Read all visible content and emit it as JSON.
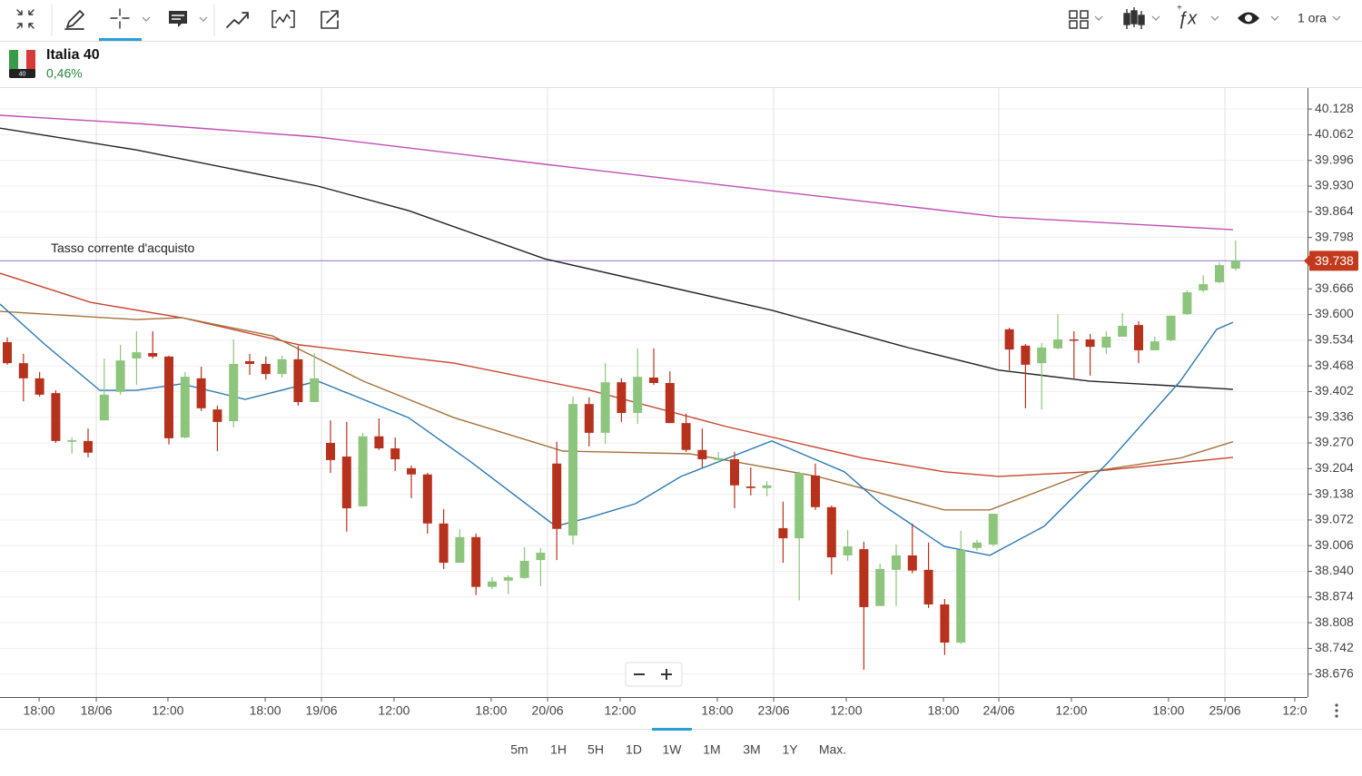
{
  "toolbar": {
    "interval": "1 ora"
  },
  "instrument": {
    "name": "Italia 40",
    "change": "0,46%",
    "badge": "40"
  },
  "ranges": {
    "buttons": [
      "5m",
      "1H",
      "5H",
      "1D",
      "1W",
      "1M",
      "3M",
      "1Y",
      "Max."
    ],
    "selected": 4
  },
  "chart_data": {
    "type": "candlestick",
    "x": [
      0,
      1,
      2,
      3,
      4,
      5,
      6,
      7,
      8,
      9,
      10,
      11,
      12,
      13,
      14,
      15,
      16,
      17,
      18,
      19,
      20,
      21,
      22,
      23,
      24,
      25,
      26,
      27,
      28,
      29,
      30,
      31,
      32,
      33,
      34,
      35,
      36,
      37,
      38,
      39,
      40,
      41,
      42,
      43,
      44,
      45,
      46,
      47,
      48,
      49,
      50,
      51,
      52,
      53,
      54,
      55,
      56,
      57,
      58,
      59,
      60,
      61,
      62,
      63,
      64,
      65,
      66,
      67,
      68,
      69,
      70,
      71,
      72,
      73,
      74,
      75,
      76
    ],
    "open": [
      39.529,
      39.475,
      39.436,
      39.398,
      39.273,
      39.275,
      39.328,
      39.401,
      39.487,
      39.501,
      39.492,
      39.284,
      39.436,
      39.356,
      39.326,
      39.48,
      39.473,
      39.447,
      39.485,
      39.375,
      39.27,
      39.235,
      39.107,
      39.287,
      39.256,
      39.205,
      39.189,
      39.063,
      38.962,
      39.028,
      38.9,
      38.916,
      38.923,
      38.969,
      39.217,
      39.032,
      39.37,
      39.296,
      39.426,
      39.347,
      39.438,
      39.424,
      39.321,
      39.252,
      39.226,
      39.228,
      39.158,
      39.154,
      39.051,
      39.025,
      39.186,
      39.105,
      38.981,
      38.997,
      38.851,
      38.944,
      38.981,
      38.944,
      38.855,
      38.757,
      39.0,
      39.009,
      39.562,
      39.52,
      39.475,
      39.513,
      39.536,
      39.536,
      39.515,
      39.543,
      39.573,
      39.508,
      39.534,
      39.601,
      39.662,
      39.683,
      39.718
    ],
    "high": [
      39.541,
      39.499,
      39.452,
      39.405,
      39.284,
      39.307,
      39.487,
      39.522,
      39.557,
      39.557,
      39.494,
      39.452,
      39.466,
      39.366,
      39.536,
      39.499,
      39.492,
      39.494,
      39.52,
      39.501,
      39.328,
      39.324,
      39.296,
      39.333,
      39.284,
      39.212,
      39.193,
      39.1,
      39.049,
      39.037,
      38.925,
      38.93,
      39.002,
      39.0,
      39.273,
      39.389,
      39.387,
      39.475,
      39.436,
      39.513,
      39.513,
      39.454,
      39.345,
      39.307,
      39.247,
      39.247,
      39.207,
      39.172,
      39.119,
      39.196,
      39.217,
      39.109,
      39.046,
      39.016,
      38.96,
      39.009,
      39.063,
      39.014,
      38.869,
      39.044,
      39.021,
      39.088,
      39.566,
      39.524,
      39.527,
      39.601,
      39.557,
      39.55,
      39.557,
      39.604,
      39.583,
      39.543,
      39.597,
      39.662,
      39.701,
      39.734,
      39.79
    ],
    "low": [
      39.471,
      39.377,
      39.389,
      39.27,
      39.242,
      39.233,
      39.328,
      39.394,
      39.419,
      39.487,
      39.266,
      39.282,
      39.352,
      39.249,
      39.31,
      39.445,
      39.433,
      39.438,
      39.366,
      39.375,
      39.193,
      39.042,
      39.107,
      39.252,
      39.198,
      39.128,
      39.037,
      38.946,
      38.962,
      38.879,
      38.895,
      38.881,
      38.921,
      38.902,
      38.969,
      39.009,
      39.261,
      39.268,
      39.324,
      39.319,
      39.419,
      39.321,
      39.247,
      39.207,
      39.221,
      39.102,
      39.135,
      39.133,
      38.962,
      38.865,
      39.098,
      38.932,
      38.967,
      38.687,
      38.851,
      38.851,
      38.935,
      38.846,
      38.725,
      38.753,
      38.993,
      39.004,
      39.457,
      39.359,
      39.356,
      39.51,
      39.433,
      39.443,
      39.499,
      39.543,
      39.475,
      39.508,
      39.531,
      39.599,
      39.657,
      39.68,
      39.713
    ],
    "close": [
      39.475,
      39.436,
      39.394,
      39.275,
      39.277,
      39.245,
      39.394,
      39.482,
      39.503,
      39.492,
      39.282,
      39.44,
      39.359,
      39.324,
      39.473,
      39.473,
      39.447,
      39.485,
      39.375,
      39.436,
      39.226,
      39.102,
      39.287,
      39.256,
      39.228,
      39.189,
      39.063,
      38.962,
      39.028,
      38.9,
      38.914,
      38.925,
      38.967,
      38.988,
      39.049,
      39.37,
      39.296,
      39.426,
      39.347,
      39.44,
      39.424,
      39.321,
      39.252,
      39.228,
      39.231,
      39.161,
      39.154,
      39.161,
      39.025,
      39.193,
      39.105,
      38.976,
      39.004,
      38.848,
      38.946,
      38.981,
      38.942,
      38.855,
      38.757,
      38.995,
      39.014,
      39.088,
      39.51,
      39.471,
      39.515,
      39.536,
      39.534,
      39.517,
      39.543,
      39.571,
      39.508,
      39.531,
      39.597,
      39.657,
      39.678,
      39.727,
      39.738
    ],
    "up_color": "#8dc57d",
    "down_color": "#b7321d",
    "lines": [
      {
        "color": "#c24fb3",
        "x": [
          -0.45,
          7.98,
          19.21,
          33.26,
          47.3,
          61.35,
          75.84
        ],
        "values": [
          40.112,
          40.091,
          40.056,
          39.986,
          39.918,
          39.851,
          39.818
        ]
      },
      {
        "color": "#222222",
        "x": [
          -0.45,
          7.98,
          19.21,
          24.83,
          33.26,
          47.3,
          55.73,
          61.35,
          66.97,
          75.84
        ],
        "values": [
          40.079,
          40.023,
          39.93,
          39.867,
          39.743,
          39.611,
          39.515,
          39.457,
          39.429,
          39.408
        ]
      },
      {
        "color": "#c9442f",
        "x": [
          -0.45,
          5.17,
          10.79,
          18.09,
          27.64,
          36.07,
          44.49,
          52.92,
          57.98,
          61.35,
          66.97,
          75.84
        ],
        "values": [
          39.706,
          39.631,
          39.592,
          39.522,
          39.475,
          39.405,
          39.312,
          39.231,
          39.196,
          39.184,
          39.196,
          39.233
        ]
      },
      {
        "color": "#a4733c",
        "x": [
          -0.45,
          7.98,
          10.79,
          16.4,
          22.02,
          27.64,
          34.38,
          42.25,
          50.11,
          57.98,
          60.79,
          66.97,
          72.58,
          75.84
        ],
        "values": [
          39.608,
          39.587,
          39.592,
          39.545,
          39.429,
          39.335,
          39.249,
          39.242,
          39.184,
          39.098,
          39.098,
          39.196,
          39.231,
          39.273
        ]
      },
      {
        "color": "#2b79b2",
        "x": [
          -0.45,
          2.36,
          5.73,
          7.98,
          10.79,
          14.72,
          19.21,
          24.83,
          28.76,
          33.93,
          36.07,
          38.88,
          41.69,
          47.3,
          51.8,
          54.04,
          57.98,
          60.79,
          64.16,
          68.09,
          72.58,
          74.83,
          75.84
        ],
        "values": [
          39.627,
          39.522,
          39.405,
          39.405,
          39.422,
          39.382,
          39.429,
          39.335,
          39.219,
          39.056,
          39.079,
          39.114,
          39.184,
          39.275,
          39.196,
          39.114,
          39.004,
          38.981,
          39.056,
          39.219,
          39.429,
          39.562,
          39.58
        ]
      }
    ],
    "price_line": {
      "value": 39.738,
      "label": "Tasso corrente d'acquisto",
      "color": "#a48fd6",
      "badge_color": "#c23a1e"
    },
    "xlim": [
      -0.45,
      80.45
    ],
    "ylim": [
      38.617,
      40.182
    ],
    "xticks": [
      {
        "value": 1.97,
        "label": "18:00"
      },
      {
        "value": 5.51,
        "label": "18/06"
      },
      {
        "value": 9.94,
        "label": "12:00"
      },
      {
        "value": 15.96,
        "label": "18:00"
      },
      {
        "value": 19.44,
        "label": "19/06"
      },
      {
        "value": 23.93,
        "label": "12:00"
      },
      {
        "value": 29.94,
        "label": "18:00"
      },
      {
        "value": 33.43,
        "label": "20/06"
      },
      {
        "value": 37.92,
        "label": "12:00"
      },
      {
        "value": 43.93,
        "label": "18:00"
      },
      {
        "value": 47.42,
        "label": "23/06"
      },
      {
        "value": 51.91,
        "label": "12:00"
      },
      {
        "value": 57.92,
        "label": "18:00"
      },
      {
        "value": 61.35,
        "label": "24/06"
      },
      {
        "value": 65.84,
        "label": "12:00"
      },
      {
        "value": 71.85,
        "label": "18:00"
      },
      {
        "value": 75.34,
        "label": "25/06"
      },
      {
        "value": 79.66,
        "label": "12:0"
      }
    ],
    "yticks": [
      40.128,
      40.062,
      39.996,
      {
        "value": 39.93,
        "label": "39.930"
      },
      39.864,
      39.798,
      39.666,
      {
        "value": 39.6,
        "label": "39.600"
      },
      39.534,
      39.468,
      39.402,
      39.336,
      {
        "value": 39.27,
        "label": "39.270"
      },
      39.204,
      39.138,
      39.072,
      39.006,
      {
        "value": 38.94,
        "label": "38.940"
      },
      38.874,
      38.808,
      38.742,
      38.676
    ],
    "grid": true
  }
}
